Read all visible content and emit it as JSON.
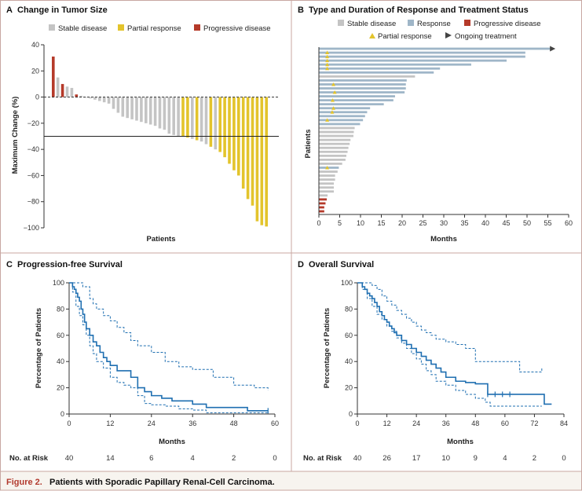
{
  "figure_caption": {
    "label": "Figure 2.",
    "text": "Patients with Sporadic Papillary Renal-Cell Carcinoma."
  },
  "colors": {
    "stable": "#c4c4c4",
    "partial": "#e3c42c",
    "progressive": "#b53a2a",
    "response": "#9fb6c8",
    "km": "#1f6fb1",
    "border": "#c8a7a2",
    "caption": "#b23a2e",
    "caption_bg": "#f7f4ef"
  },
  "chart_data": [
    {
      "id": "A",
      "type": "bar",
      "title": "Change in Tumor Size",
      "xlabel": "Patients",
      "ylabel": "Maximum Change (%)",
      "ylim": [
        -100,
        40
      ],
      "yticks": [
        "40",
        "20",
        "0",
        "−20",
        "−40",
        "−60",
        "−80",
        "−100"
      ],
      "threshold": -30,
      "legend": [
        "Stable disease",
        "Partial response",
        "Progressive disease"
      ],
      "values": [
        31,
        15,
        10,
        8,
        7,
        2,
        1,
        0,
        -1,
        -2,
        -3,
        -4,
        -5,
        -9,
        -12,
        -15,
        -16,
        -17,
        -18,
        -19,
        -20,
        -21,
        -22,
        -24,
        -25,
        -28,
        -29,
        -30,
        -30,
        -31,
        -32,
        -33,
        -34,
        -36,
        -38,
        -40,
        -42,
        -46,
        -51,
        -56,
        -60,
        -70,
        -78,
        -83,
        -95,
        -98,
        -99
      ],
      "categories": [
        "P",
        "S",
        "P",
        "S",
        "S",
        "P",
        "S",
        "S",
        "S",
        "S",
        "S",
        "S",
        "S",
        "S",
        "S",
        "S",
        "S",
        "S",
        "S",
        "S",
        "S",
        "S",
        "S",
        "S",
        "S",
        "S",
        "S",
        "S",
        "R",
        "R",
        "S",
        "R",
        "S",
        "S",
        "R",
        "S",
        "R",
        "R",
        "R",
        "R",
        "R",
        "R",
        "R",
        "R",
        "R",
        "R",
        "R"
      ]
    },
    {
      "id": "B",
      "type": "bar",
      "orientation": "horizontal",
      "title": "Type and Duration of Response and Treatment Status",
      "xlabel": "Months",
      "ylabel": "Patients",
      "xlim": [
        0,
        60
      ],
      "xticks": [
        "0",
        "5",
        "10",
        "15",
        "20",
        "25",
        "30",
        "35",
        "40",
        "45",
        "50",
        "55",
        "60"
      ],
      "legend": [
        "Stable disease",
        "Response",
        "Progressive disease",
        "Partial response",
        "Ongoing treatment"
      ],
      "durations": [
        55.5,
        49.5,
        49.5,
        45,
        36.5,
        29,
        27.5,
        23,
        21,
        20.8,
        20.8,
        20.5,
        18.2,
        17.8,
        15.5,
        12.2,
        11.5,
        11,
        10.5,
        9.8,
        8.5,
        8.3,
        8.2,
        7.5,
        7.3,
        7,
        6.8,
        6.5,
        6.3,
        5.5,
        4.7,
        4.4,
        3.8,
        3.8,
        3.5,
        3.5,
        3.5,
        2.0,
        1.8,
        1.5,
        1.2,
        1.2
      ],
      "responder": [
        1,
        1,
        1,
        1,
        1,
        1,
        1,
        0,
        1,
        1,
        1,
        1,
        1,
        1,
        1,
        1,
        1,
        1,
        1,
        1,
        0,
        0,
        0,
        0,
        0,
        0,
        0,
        0,
        0,
        0,
        1,
        0,
        0,
        0,
        0,
        0,
        0,
        0,
        0,
        0,
        0,
        0
      ],
      "progressive_rows": [
        38,
        39,
        40,
        41
      ],
      "partial_response_marks": [
        {
          "row": 1,
          "month": 2
        },
        {
          "row": 2,
          "month": 2
        },
        {
          "row": 3,
          "month": 2
        },
        {
          "row": 4,
          "month": 2
        },
        {
          "row": 5,
          "month": 2
        },
        {
          "row": 9,
          "month": 3.5
        },
        {
          "row": 11,
          "month": 3.8
        },
        {
          "row": 13,
          "month": 3.3
        },
        {
          "row": 15,
          "month": 3.5
        },
        {
          "row": 16,
          "month": 3.2
        },
        {
          "row": 18,
          "month": 2
        },
        {
          "row": 30,
          "month": 2
        }
      ],
      "ongoing_rows": [
        0
      ]
    },
    {
      "id": "C",
      "type": "line",
      "title": "Progression-free Survival",
      "xlabel": "Months",
      "ylabel": "Percentage of Patients",
      "xlim": [
        0,
        60
      ],
      "ylim": [
        0,
        100
      ],
      "xticks": [
        "0",
        "12",
        "24",
        "36",
        "48",
        "60"
      ],
      "yticks": [
        "0",
        "20",
        "40",
        "60",
        "80",
        "100"
      ],
      "series": [
        {
          "name": "Estimate",
          "style": "solid",
          "x": [
            0,
            1,
            1.5,
            2,
            2.5,
            3,
            3.5,
            4,
            4.5,
            5,
            6,
            7,
            8,
            9,
            10,
            11,
            12,
            14,
            16,
            18,
            20,
            22,
            24,
            27,
            30,
            36,
            40,
            52,
            58
          ],
          "y": [
            100,
            97,
            95,
            92,
            89,
            86,
            80,
            76,
            70,
            65,
            60,
            55,
            52,
            47,
            43,
            40,
            37,
            33,
            33,
            28,
            20,
            17,
            14,
            12,
            10,
            7.5,
            5,
            2.5,
            2.5
          ]
        },
        {
          "name": "Upper 95% CI",
          "style": "dashed",
          "x": [
            0,
            2,
            4,
            6,
            7,
            8,
            10,
            12,
            14,
            16,
            18,
            20,
            24,
            28,
            32,
            36,
            42,
            48,
            54,
            58
          ],
          "y": [
            100,
            100,
            97,
            88,
            84,
            80,
            75,
            71,
            66,
            62,
            56,
            52,
            47,
            40,
            36,
            34,
            28,
            22,
            20,
            18
          ]
        },
        {
          "name": "Lower 95% CI",
          "style": "dashed",
          "x": [
            0,
            1,
            2,
            3,
            4,
            5,
            6,
            7,
            8,
            10,
            12,
            14,
            16,
            18,
            20,
            22,
            24,
            28,
            32,
            36,
            40,
            44,
            50,
            54,
            58
          ],
          "y": [
            100,
            93,
            82,
            75,
            68,
            60,
            52,
            46,
            40,
            35,
            28,
            24,
            22,
            20,
            14,
            8,
            7,
            6,
            4,
            3,
            1,
            1,
            1,
            1,
            1
          ]
        }
      ],
      "censored": [
        {
          "x": 58,
          "y": 2.5
        }
      ],
      "risk_label": "No. at Risk",
      "risk_values": [
        "40",
        "14",
        "6",
        "4",
        "2",
        "0"
      ]
    },
    {
      "id": "D",
      "type": "line",
      "title": "Overall Survival",
      "xlabel": "Months",
      "ylabel": "Percentage of Patients",
      "xlim": [
        0,
        84
      ],
      "ylim": [
        0,
        100
      ],
      "xticks": [
        "0",
        "12",
        "24",
        "36",
        "48",
        "60",
        "72",
        "84"
      ],
      "yticks": [
        "0",
        "20",
        "40",
        "60",
        "80",
        "100"
      ],
      "series": [
        {
          "name": "Estimate",
          "style": "solid",
          "x": [
            0,
            2,
            3,
            4,
            5,
            6,
            7,
            8,
            9,
            10,
            11,
            12,
            13,
            14,
            15,
            16,
            18,
            20,
            22,
            24,
            26,
            28,
            30,
            32,
            34,
            36,
            40,
            44,
            48,
            52,
            53,
            76,
            79
          ],
          "y": [
            100,
            97,
            95,
            92,
            90,
            88,
            85,
            82,
            78,
            75,
            72,
            70,
            67,
            65,
            62,
            60,
            56,
            53,
            50,
            47,
            44,
            41,
            38,
            35,
            32,
            28,
            25,
            24,
            23,
            23,
            15,
            7.5,
            7.5
          ]
        },
        {
          "name": "Upper 95% CI",
          "style": "dashed",
          "x": [
            0,
            4,
            6,
            8,
            10,
            12,
            14,
            16,
            18,
            20,
            22,
            24,
            26,
            28,
            30,
            32,
            36,
            40,
            44,
            48,
            54,
            60,
            66,
            70,
            75
          ],
          "y": [
            100,
            100,
            98,
            95,
            90,
            86,
            83,
            79,
            76,
            73,
            70,
            67,
            64,
            62,
            60,
            57,
            55,
            53,
            50,
            40,
            40,
            40,
            32,
            32,
            35
          ]
        },
        {
          "name": "Lower 95% CI",
          "style": "dashed",
          "x": [
            0,
            2,
            4,
            6,
            8,
            10,
            12,
            14,
            16,
            18,
            20,
            22,
            24,
            26,
            28,
            30,
            32,
            36,
            40,
            44,
            48,
            52,
            54,
            75
          ],
          "y": [
            100,
            95,
            88,
            82,
            76,
            72,
            67,
            63,
            58,
            54,
            50,
            46,
            42,
            38,
            33,
            30,
            25,
            22,
            18,
            15,
            12,
            9,
            6,
            6
          ]
        }
      ],
      "censored": [
        {
          "x": 53,
          "y": 15
        },
        {
          "x": 56,
          "y": 15
        },
        {
          "x": 59,
          "y": 15
        },
        {
          "x": 62,
          "y": 15
        }
      ],
      "risk_label": "No. at Risk",
      "risk_values": [
        "40",
        "26",
        "17",
        "10",
        "9",
        "4",
        "2",
        "0"
      ]
    }
  ]
}
